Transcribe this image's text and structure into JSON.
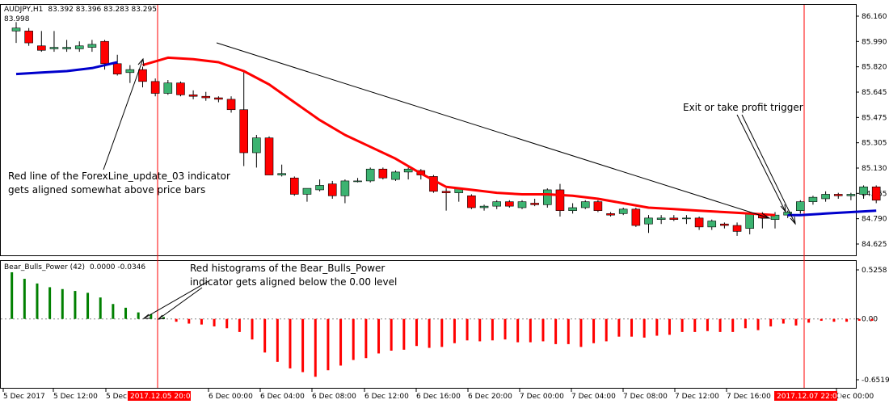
{
  "chart_data": [
    {
      "type": "candlestick",
      "title": "AUDJPY,H1",
      "ohlc_header": "83.392 83.396 83.283 83.295",
      "last_price": "83.998",
      "y_ticks": [
        "86.160",
        "85.990",
        "85.820",
        "85.645",
        "85.475",
        "85.305",
        "85.130",
        "84.965",
        "84.790",
        "84.625"
      ],
      "ylim": [
        84.625,
        86.16
      ],
      "candles": [
        {
          "o": 86.06,
          "h": 86.12,
          "l": 85.98,
          "c": 86.08
        },
        {
          "o": 86.06,
          "h": 86.08,
          "l": 85.96,
          "c": 85.98
        },
        {
          "o": 85.96,
          "h": 86.06,
          "l": 85.92,
          "c": 85.93
        },
        {
          "o": 85.94,
          "h": 86.06,
          "l": 85.92,
          "c": 85.95
        },
        {
          "o": 85.94,
          "h": 86.0,
          "l": 85.92,
          "c": 85.95
        },
        {
          "o": 85.94,
          "h": 85.99,
          "l": 85.92,
          "c": 85.96
        },
        {
          "o": 85.95,
          "h": 86.0,
          "l": 85.92,
          "c": 85.97
        },
        {
          "o": 85.99,
          "h": 86.0,
          "l": 85.8,
          "c": 85.84
        },
        {
          "o": 85.84,
          "h": 85.9,
          "l": 85.76,
          "c": 85.77
        },
        {
          "o": 85.78,
          "h": 85.83,
          "l": 85.71,
          "c": 85.8
        },
        {
          "o": 85.8,
          "h": 85.82,
          "l": 85.68,
          "c": 85.72
        },
        {
          "o": 85.72,
          "h": 85.74,
          "l": 85.62,
          "c": 85.64
        },
        {
          "o": 85.64,
          "h": 85.73,
          "l": 85.63,
          "c": 85.71
        },
        {
          "o": 85.71,
          "h": 85.72,
          "l": 85.62,
          "c": 85.63
        },
        {
          "o": 85.63,
          "h": 85.66,
          "l": 85.6,
          "c": 85.62
        },
        {
          "o": 85.62,
          "h": 85.65,
          "l": 85.59,
          "c": 85.61
        },
        {
          "o": 85.61,
          "h": 85.62,
          "l": 85.58,
          "c": 85.6
        },
        {
          "o": 85.6,
          "h": 85.62,
          "l": 85.51,
          "c": 85.53
        },
        {
          "o": 85.53,
          "h": 85.79,
          "l": 85.15,
          "c": 85.24
        },
        {
          "o": 85.24,
          "h": 85.36,
          "l": 85.14,
          "c": 85.34
        },
        {
          "o": 85.34,
          "h": 85.35,
          "l": 85.09,
          "c": 85.09
        },
        {
          "o": 85.09,
          "h": 85.16,
          "l": 85.08,
          "c": 85.1
        },
        {
          "o": 85.07,
          "h": 85.08,
          "l": 84.95,
          "c": 84.96
        },
        {
          "o": 84.96,
          "h": 85.0,
          "l": 84.91,
          "c": 85.0
        },
        {
          "o": 84.99,
          "h": 85.06,
          "l": 84.98,
          "c": 85.02
        },
        {
          "o": 85.03,
          "h": 85.05,
          "l": 84.93,
          "c": 84.95
        },
        {
          "o": 84.95,
          "h": 85.06,
          "l": 84.9,
          "c": 85.05
        },
        {
          "o": 85.05,
          "h": 85.07,
          "l": 85.04,
          "c": 85.05
        },
        {
          "o": 85.05,
          "h": 85.14,
          "l": 85.04,
          "c": 85.13
        },
        {
          "o": 85.13,
          "h": 85.14,
          "l": 85.06,
          "c": 85.07
        },
        {
          "o": 85.06,
          "h": 85.12,
          "l": 85.05,
          "c": 85.11
        },
        {
          "o": 85.11,
          "h": 85.14,
          "l": 85.06,
          "c": 85.13
        },
        {
          "o": 85.12,
          "h": 85.13,
          "l": 85.06,
          "c": 85.09
        },
        {
          "o": 85.08,
          "h": 85.09,
          "l": 84.97,
          "c": 84.98
        },
        {
          "o": 84.98,
          "h": 85.0,
          "l": 84.85,
          "c": 84.97
        },
        {
          "o": 84.97,
          "h": 85.0,
          "l": 84.91,
          "c": 85.0
        },
        {
          "o": 84.95,
          "h": 84.96,
          "l": 84.86,
          "c": 84.87
        },
        {
          "o": 84.87,
          "h": 84.89,
          "l": 84.85,
          "c": 84.88
        },
        {
          "o": 84.88,
          "h": 84.92,
          "l": 84.86,
          "c": 84.91
        },
        {
          "o": 84.91,
          "h": 84.92,
          "l": 84.87,
          "c": 84.88
        },
        {
          "o": 84.87,
          "h": 84.92,
          "l": 84.86,
          "c": 84.91
        },
        {
          "o": 84.9,
          "h": 84.93,
          "l": 84.88,
          "c": 84.89
        },
        {
          "o": 84.89,
          "h": 85.0,
          "l": 84.87,
          "c": 84.99
        },
        {
          "o": 84.99,
          "h": 85.03,
          "l": 84.81,
          "c": 84.85
        },
        {
          "o": 84.85,
          "h": 84.9,
          "l": 84.83,
          "c": 84.87
        },
        {
          "o": 84.87,
          "h": 84.92,
          "l": 84.86,
          "c": 84.91
        },
        {
          "o": 84.91,
          "h": 84.92,
          "l": 84.84,
          "c": 84.85
        },
        {
          "o": 84.83,
          "h": 84.84,
          "l": 84.81,
          "c": 84.82
        },
        {
          "o": 84.83,
          "h": 84.87,
          "l": 84.82,
          "c": 84.86
        },
        {
          "o": 84.86,
          "h": 84.87,
          "l": 84.74,
          "c": 84.75
        },
        {
          "o": 84.76,
          "h": 84.82,
          "l": 84.7,
          "c": 84.8
        },
        {
          "o": 84.79,
          "h": 84.82,
          "l": 84.76,
          "c": 84.8
        },
        {
          "o": 84.8,
          "h": 84.82,
          "l": 84.78,
          "c": 84.79
        },
        {
          "o": 84.8,
          "h": 84.82,
          "l": 84.76,
          "c": 84.8
        },
        {
          "o": 84.8,
          "h": 84.81,
          "l": 84.72,
          "c": 84.74
        },
        {
          "o": 84.74,
          "h": 84.79,
          "l": 84.72,
          "c": 84.78
        },
        {
          "o": 84.76,
          "h": 84.77,
          "l": 84.73,
          "c": 84.75
        },
        {
          "o": 84.75,
          "h": 84.77,
          "l": 84.68,
          "c": 84.71
        },
        {
          "o": 84.73,
          "h": 84.84,
          "l": 84.69,
          "c": 84.83
        },
        {
          "o": 84.82,
          "h": 84.84,
          "l": 84.73,
          "c": 84.8
        },
        {
          "o": 84.79,
          "h": 84.84,
          "l": 84.73,
          "c": 84.82
        },
        {
          "o": 84.82,
          "h": 84.85,
          "l": 84.8,
          "c": 84.84
        },
        {
          "o": 84.85,
          "h": 84.92,
          "l": 84.83,
          "c": 84.91
        },
        {
          "o": 84.91,
          "h": 84.95,
          "l": 84.89,
          "c": 84.94
        },
        {
          "o": 84.93,
          "h": 84.98,
          "l": 84.91,
          "c": 84.96
        },
        {
          "o": 84.96,
          "h": 84.97,
          "l": 84.93,
          "c": 84.95
        },
        {
          "o": 84.95,
          "h": 84.97,
          "l": 84.92,
          "c": 84.96
        },
        {
          "o": 84.96,
          "h": 85.02,
          "l": 84.93,
          "c": 85.01
        },
        {
          "o": 85.01,
          "h": 85.02,
          "l": 84.9,
          "c": 84.92
        }
      ],
      "moving_average": {
        "color": "#ff0000",
        "points": [
          [
            10,
            85.83
          ],
          [
            12,
            85.88
          ],
          [
            14,
            85.87
          ],
          [
            16,
            85.85
          ],
          [
            18,
            85.79
          ],
          [
            20,
            85.7
          ],
          [
            22,
            85.58
          ],
          [
            24,
            85.46
          ],
          [
            26,
            85.36
          ],
          [
            28,
            85.28
          ],
          [
            30,
            85.2
          ],
          [
            32,
            85.1
          ],
          [
            34,
            85.01
          ],
          [
            36,
            84.99
          ],
          [
            38,
            84.97
          ],
          [
            40,
            84.96
          ],
          [
            42,
            84.96
          ],
          [
            44,
            84.95
          ],
          [
            46,
            84.93
          ],
          [
            48,
            84.9
          ],
          [
            50,
            84.87
          ],
          [
            52,
            84.86
          ],
          [
            54,
            84.85
          ],
          [
            56,
            84.84
          ],
          [
            58,
            84.83
          ],
          [
            60,
            84.82
          ]
        ]
      },
      "blue_line_left": {
        "color": "#0000cc",
        "points": [
          [
            0,
            85.77
          ],
          [
            2,
            85.78
          ],
          [
            4,
            85.79
          ],
          [
            6,
            85.81
          ],
          [
            8,
            85.85
          ]
        ]
      },
      "blue_line_right": {
        "color": "#0000cc",
        "points": [
          [
            61,
            84.82
          ],
          [
            62,
            84.82
          ],
          [
            64,
            84.83
          ],
          [
            66,
            84.84
          ],
          [
            68,
            84.85
          ]
        ]
      }
    },
    {
      "type": "histogram",
      "title": "Bear_Bulls_Power (42)",
      "values_header": "0.0000 -0.0346",
      "y_ticks": [
        "0.5258",
        "0.00",
        "-0.6519"
      ],
      "ylim": [
        -0.6519,
        0.5258
      ],
      "values": [
        0.5,
        0.43,
        0.38,
        0.34,
        0.32,
        0.3,
        0.28,
        0.23,
        0.16,
        0.12,
        0.07,
        0.05,
        0.02,
        -0.03,
        -0.05,
        -0.06,
        -0.08,
        -0.1,
        -0.14,
        -0.22,
        -0.36,
        -0.46,
        -0.53,
        -0.57,
        -0.62,
        -0.55,
        -0.5,
        -0.44,
        -0.42,
        -0.37,
        -0.34,
        -0.33,
        -0.29,
        -0.31,
        -0.3,
        -0.26,
        -0.23,
        -0.24,
        -0.23,
        -0.22,
        -0.25,
        -0.25,
        -0.24,
        -0.27,
        -0.27,
        -0.3,
        -0.26,
        -0.24,
        -0.19,
        -0.19,
        -0.2,
        -0.18,
        -0.17,
        -0.14,
        -0.14,
        -0.13,
        -0.14,
        -0.14,
        -0.1,
        -0.12,
        -0.08,
        -0.05,
        -0.07,
        -0.04,
        -0.02,
        -0.03,
        -0.03,
        -0.02,
        -0.02
      ]
    }
  ],
  "x_axis": {
    "labels": [
      "5 Dec 2017",
      "5 Dec 12:00",
      "5 Dec 16:00",
      "6 Dec 00:00",
      "6 Dec 04:00",
      "6 Dec 08:00",
      "6 Dec 12:00",
      "6 Dec 16:00",
      "6 Dec 20:00",
      "7 Dec 00:00",
      "7 Dec 04:00",
      "7 Dec 08:00",
      "7 Dec 12:00",
      "7 Dec 16:00",
      "Dec 00:00"
    ],
    "highlight_labels": [
      "2017.12.05 20:00",
      "2017.12.07 22:00"
    ]
  },
  "annotations": {
    "red_line_lines": [
      "Red line of the ForexLine_update_03 indicator",
      "gets aligned somewhat above price bars"
    ],
    "histogram_lines": [
      "Red histograms of the Bear_Bulls_Power",
      "indicator gets aligned below the 0.00 level"
    ],
    "exit_line": "Exit or take profit trigger"
  },
  "colors": {
    "bull": "#3cb371",
    "bear": "#ff0000",
    "hist_up": "#008000",
    "hist_down": "#ff0000",
    "vline": "#ff0000",
    "tag_bg": "#ff0000"
  }
}
